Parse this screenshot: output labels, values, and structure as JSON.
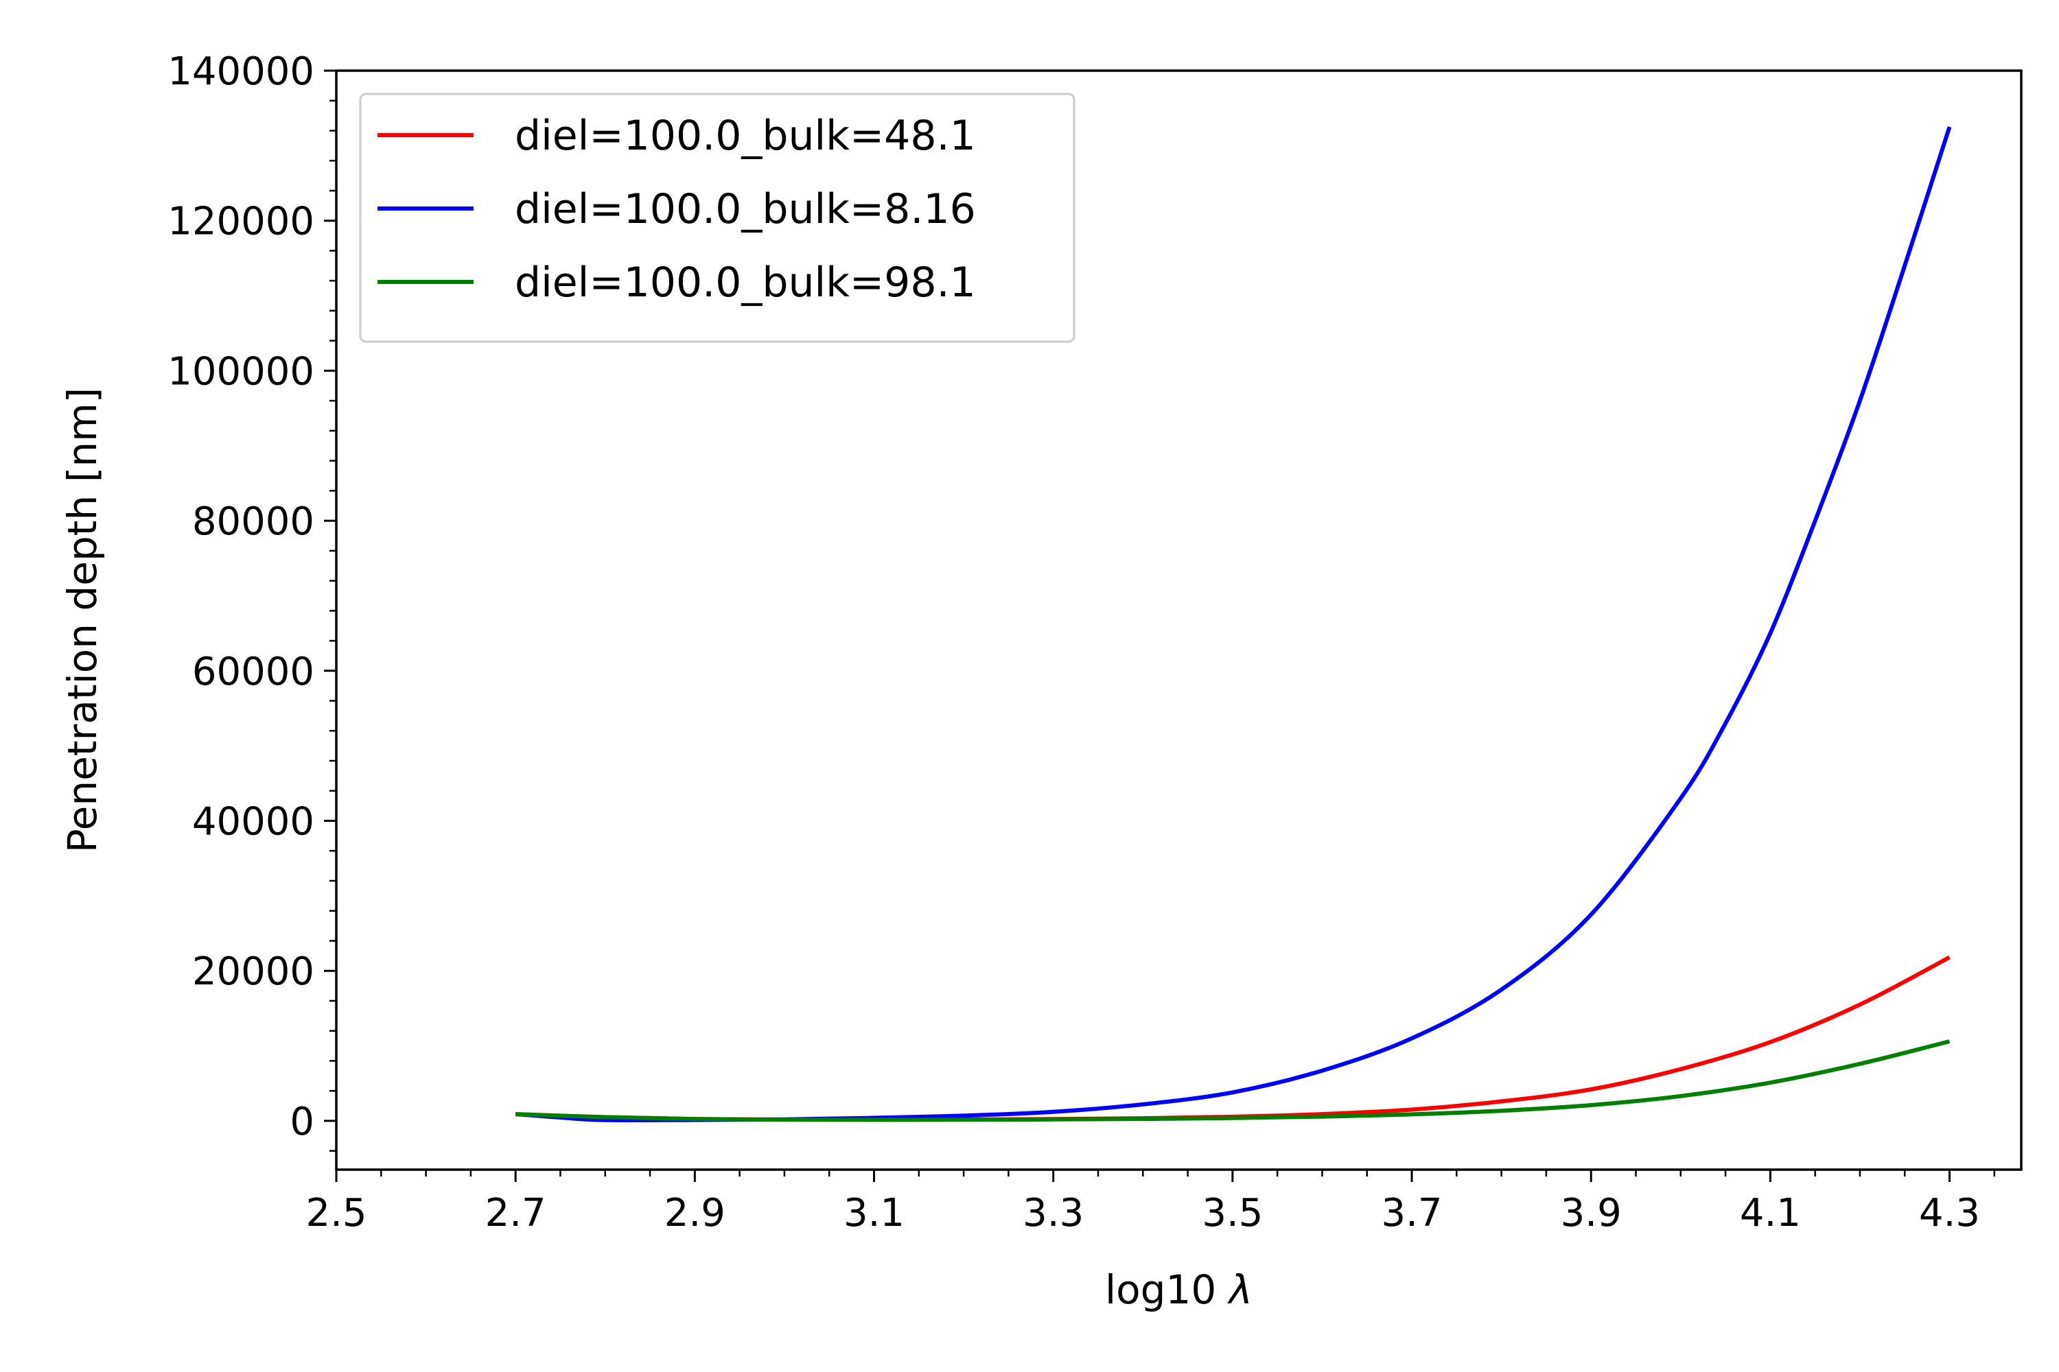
{
  "chart_data": {
    "type": "line",
    "title": "",
    "xlabel": "log10",
    "xlabel_symbol": "λ",
    "ylabel": "Penetration depth [nm]",
    "xlim": [
      2.5,
      4.38
    ],
    "ylim": [
      -6500,
      140000
    ],
    "xticks": [
      "2.5",
      "2.7",
      "2.9",
      "3.1",
      "3.3",
      "3.5",
      "3.7",
      "3.9",
      "4.1",
      "4.3"
    ],
    "yticks": [
      "0",
      "20000",
      "40000",
      "60000",
      "80000",
      "100000",
      "120000",
      "140000"
    ],
    "x_minor_step": 0.05,
    "y_minor_step": 4000,
    "grid": false,
    "legend_position": "top-left",
    "series": [
      {
        "name": "diel=100.0_bulk=48.1",
        "color": "#ff0000",
        "x": [
          2.7,
          2.8,
          2.9,
          3.0,
          3.1,
          3.2,
          3.3,
          3.4,
          3.5,
          3.6,
          3.7,
          3.8,
          3.9,
          4.0,
          4.1,
          4.2,
          4.3
        ],
        "y": [
          900,
          500,
          250,
          180,
          160,
          180,
          240,
          350,
          550,
          900,
          1500,
          2600,
          4200,
          6900,
          10500,
          15500,
          21800
        ]
      },
      {
        "name": "diel=100.0_bulk=8.16",
        "color": "#0000ff",
        "x": [
          2.7,
          2.75,
          2.8,
          2.9,
          3.0,
          3.1,
          3.2,
          3.3,
          3.4,
          3.5,
          3.6,
          3.7,
          3.8,
          3.9,
          4.0,
          4.05,
          4.1,
          4.15,
          4.2,
          4.25,
          4.3
        ],
        "y": [
          900,
          450,
          100,
          120,
          200,
          400,
          700,
          1200,
          2200,
          3800,
          6700,
          11000,
          17500,
          27500,
          43000,
          53000,
          65000,
          80000,
          96000,
          114000,
          132500
        ]
      },
      {
        "name": "diel=100.0_bulk=98.1",
        "color": "#008000",
        "x": [
          2.7,
          2.8,
          2.9,
          3.0,
          3.1,
          3.2,
          3.3,
          3.4,
          3.5,
          3.6,
          3.7,
          3.8,
          3.9,
          4.0,
          4.1,
          4.2,
          4.3
        ],
        "y": [
          900,
          500,
          250,
          160,
          140,
          150,
          190,
          260,
          380,
          570,
          870,
          1350,
          2100,
          3300,
          5100,
          7600,
          10600
        ]
      }
    ]
  }
}
